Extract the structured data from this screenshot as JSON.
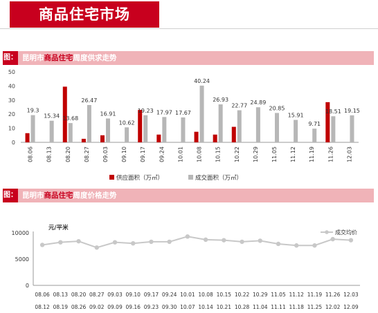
{
  "page_title": "商品住宅市场",
  "section1": {
    "tag": "图：",
    "pre": "昆明市",
    "highlight": "商品住宅",
    "post": "周度供求走势"
  },
  "section2": {
    "tag": "图：",
    "pre": "昆明市",
    "highlight": "商品住宅",
    "post": "周度价格走势"
  },
  "colors": {
    "supply": "#c00000",
    "deal": "#b7b7b7",
    "price_line": "#c8c8c8",
    "accent": "#c8001e"
  },
  "chart_data": [
    {
      "type": "bar",
      "categories": [
        "08.06",
        "08.13",
        "08.20",
        "08.27",
        "09.03",
        "09.10",
        "09.17",
        "09.24",
        "10.01",
        "10.08",
        "10.15",
        "10.22",
        "10.29",
        "11.05",
        "11.12",
        "11.19",
        "11.26",
        "12.03"
      ],
      "series": [
        {
          "name": "供应面积（万㎡）",
          "values": [
            6.5,
            0,
            39.5,
            2.5,
            5,
            0,
            23,
            5.5,
            0,
            7.5,
            5.5,
            11,
            0,
            0,
            0,
            0,
            28.5,
            0
          ]
        },
        {
          "name": "成交面积（万㎡）",
          "values": [
            19.3,
            15.34,
            13.68,
            26.47,
            16.91,
            10.62,
            19.23,
            17.97,
            17.67,
            40.24,
            26.93,
            22.77,
            24.89,
            20.85,
            15.91,
            9.71,
            18.51,
            19.15
          ]
        }
      ],
      "data_labels": [
        "19.3",
        "15.34",
        "13.68",
        "26.47",
        "16.91",
        "10.62",
        "19.23",
        "17.97",
        "17.67",
        "40.24",
        "26.93",
        "22.77",
        "24.89",
        "20.85",
        "15.91",
        "9.71",
        "18.51",
        "19.15"
      ],
      "y_ticks": [
        "0",
        "10",
        "20",
        "30",
        "40",
        "50"
      ],
      "ylim": [
        0,
        50
      ],
      "legend": "bottom"
    },
    {
      "type": "line",
      "ylabel": "元/平米",
      "categories_top": [
        "08.06",
        "08.13",
        "08.20",
        "08.27",
        "09.03",
        "09.10",
        "09.17",
        "09.24",
        "10.01",
        "10.08",
        "10.15",
        "10.22",
        "10.29",
        "11.05",
        "11.12",
        "11.19",
        "11.26",
        "12.03"
      ],
      "categories_bottom": [
        "08.12",
        "08.19",
        "08.26",
        "09.02",
        "09.09",
        "09.16",
        "09.23",
        "09.30",
        "10.07",
        "10.14",
        "10.21",
        "10.28",
        "11.04",
        "11.11",
        "11.18",
        "11.25",
        "12.02",
        "12.09"
      ],
      "series": [
        {
          "name": "成交均价",
          "values": [
            7700,
            8200,
            8400,
            7200,
            8200,
            8000,
            8300,
            8300,
            9300,
            8700,
            8600,
            8300,
            8500,
            7900,
            7600,
            7600,
            8800,
            8600
          ]
        }
      ],
      "y_ticks": [
        "0",
        "5000",
        "10000"
      ],
      "ylim": [
        0,
        10000
      ],
      "legend": "top-right"
    }
  ]
}
